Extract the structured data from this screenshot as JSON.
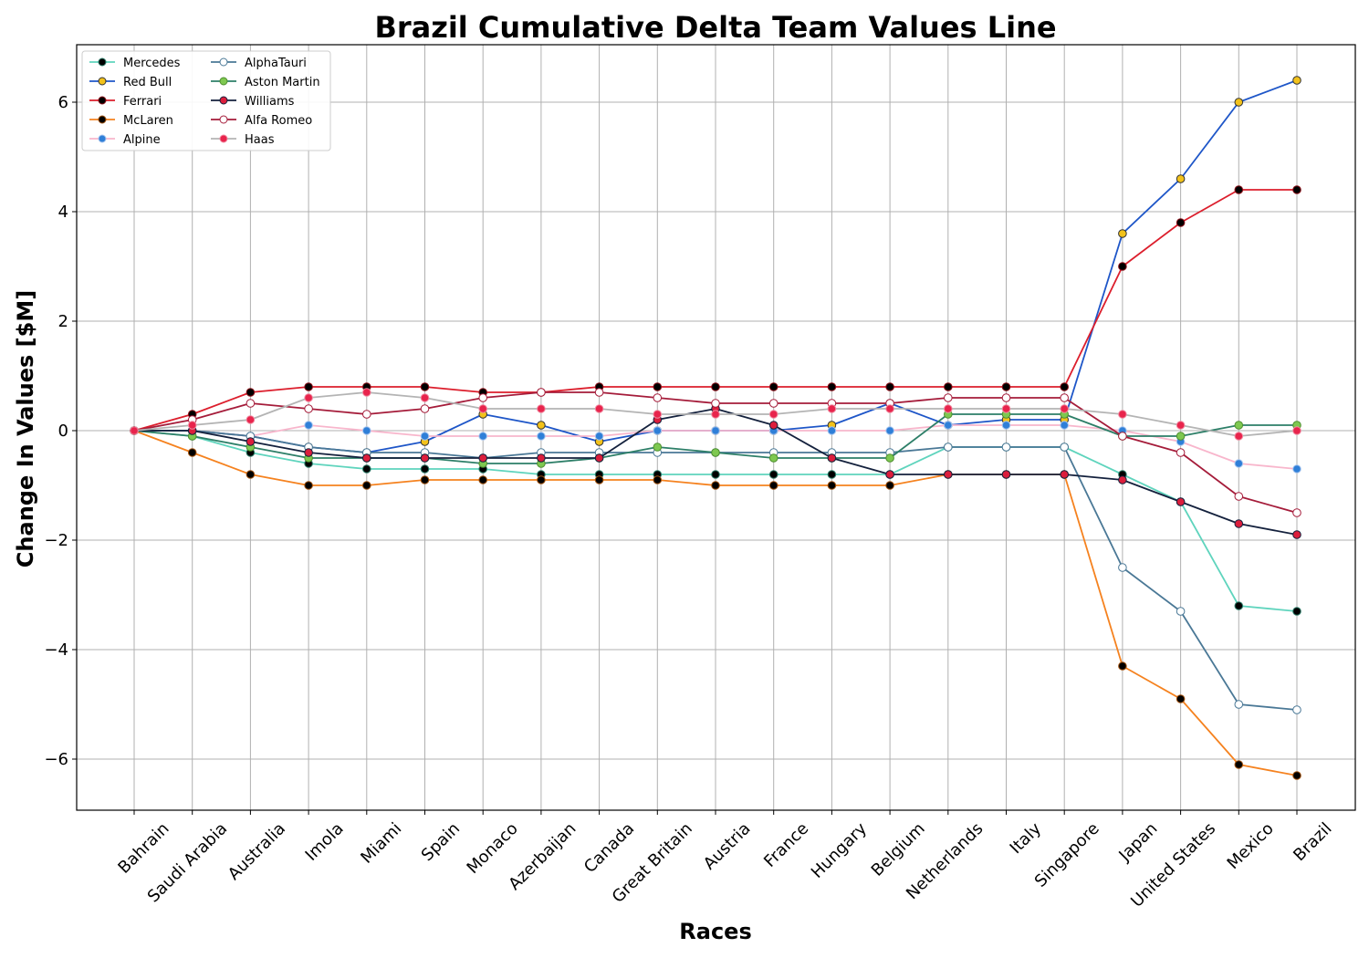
{
  "chart_data": {
    "type": "line",
    "title": "Brazil Cumulative Delta Team Values Line",
    "xlabel": "Races",
    "ylabel": "Change In Values [$M]",
    "ylim": [
      -6.9,
      7.05
    ],
    "yticks": [
      -6,
      -4,
      -2,
      0,
      2,
      4,
      6
    ],
    "ytick_labels": [
      "−6",
      "−4",
      "−2",
      "0",
      "2",
      "4",
      "6"
    ],
    "grid": true,
    "legend_position": "top-left",
    "categories": [
      "Bahrain",
      "Saudi Arabia",
      "Australia",
      "Imola",
      "Miami",
      "Spain",
      "Monaco",
      "Azerbaijan",
      "Canada",
      "Great Britain",
      "Austria",
      "France",
      "Hungary",
      "Belgium",
      "Netherlands",
      "Italy",
      "Singapore",
      "Japan",
      "United States",
      "Mexico",
      "Brazil"
    ],
    "series": [
      {
        "name": "Mercedes",
        "color": "#5fd4bd",
        "marker_fill": "#000000",
        "marker_edge": "#2e7d6a",
        "values": [
          0,
          -0.1,
          -0.4,
          -0.6,
          -0.7,
          -0.7,
          -0.7,
          -0.8,
          -0.8,
          -0.8,
          -0.8,
          -0.8,
          -0.8,
          -0.8,
          -0.3,
          -0.3,
          -0.3,
          -0.8,
          -1.3,
          -3.2,
          -3.3
        ]
      },
      {
        "name": "Red Bull",
        "color": "#1e56c8",
        "marker_fill": "#f2c21b",
        "marker_edge": "#333333",
        "values": [
          0,
          0.0,
          -0.1,
          -0.3,
          -0.4,
          -0.2,
          0.3,
          0.1,
          -0.2,
          0.0,
          0.0,
          0.0,
          0.1,
          0.5,
          0.1,
          0.2,
          0.2,
          3.6,
          4.6,
          6.0,
          6.4
        ]
      },
      {
        "name": "Ferrari",
        "color": "#dc1e2c",
        "marker_fill": "#000000",
        "marker_edge": "#8a0f18",
        "values": [
          0,
          0.3,
          0.7,
          0.8,
          0.8,
          0.8,
          0.7,
          0.7,
          0.8,
          0.8,
          0.8,
          0.8,
          0.8,
          0.8,
          0.8,
          0.8,
          0.8,
          3.0,
          3.8,
          4.4,
          4.4
        ]
      },
      {
        "name": "McLaren",
        "color": "#f5821f",
        "marker_fill": "#000000",
        "marker_edge": "#a0520f",
        "values": [
          0,
          -0.4,
          -0.8,
          -1.0,
          -1.0,
          -0.9,
          -0.9,
          -0.9,
          -0.9,
          -0.9,
          -1.0,
          -1.0,
          -1.0,
          -1.0,
          -0.8,
          -0.8,
          -0.8,
          -4.3,
          -4.9,
          -6.1,
          -6.3
        ]
      },
      {
        "name": "Alpine",
        "color": "#f8b6cc",
        "marker_fill": "#2f7fd8",
        "marker_edge": "#a7c5ee",
        "values": [
          0,
          0.0,
          -0.1,
          0.1,
          0.0,
          -0.1,
          -0.1,
          -0.1,
          -0.1,
          0.0,
          0.0,
          0.0,
          0.0,
          0.0,
          0.1,
          0.1,
          0.1,
          0.0,
          -0.2,
          -0.6,
          -0.7
        ]
      },
      {
        "name": "AlphaTauri",
        "color": "#4a7896",
        "marker_fill": "#ffffff",
        "marker_edge": "#4a7896",
        "values": [
          0,
          0.0,
          -0.1,
          -0.3,
          -0.4,
          -0.4,
          -0.5,
          -0.4,
          -0.4,
          -0.4,
          -0.4,
          -0.4,
          -0.4,
          -0.4,
          -0.3,
          -0.3,
          -0.3,
          -2.5,
          -3.3,
          -5.0,
          -5.1
        ]
      },
      {
        "name": "Aston Martin",
        "color": "#2d7f68",
        "marker_fill": "#7ec850",
        "marker_edge": "#4f8f30",
        "values": [
          0,
          -0.1,
          -0.3,
          -0.5,
          -0.5,
          -0.5,
          -0.6,
          -0.6,
          -0.5,
          -0.3,
          -0.4,
          -0.5,
          -0.5,
          -0.5,
          0.3,
          0.3,
          0.3,
          -0.1,
          -0.1,
          0.1,
          0.1
        ]
      },
      {
        "name": "Williams",
        "color": "#14213d",
        "marker_fill": "#dc1e3c",
        "marker_edge": "#14213d",
        "values": [
          0,
          0.0,
          -0.2,
          -0.4,
          -0.5,
          -0.5,
          -0.5,
          -0.5,
          -0.5,
          0.2,
          0.4,
          0.1,
          -0.5,
          -0.8,
          -0.8,
          -0.8,
          -0.8,
          -0.9,
          -1.3,
          -1.7,
          -1.9
        ]
      },
      {
        "name": "Alfa Romeo",
        "color": "#a51c3a",
        "marker_fill": "#ffffff",
        "marker_edge": "#a51c3a",
        "values": [
          0,
          0.2,
          0.5,
          0.4,
          0.3,
          0.4,
          0.6,
          0.7,
          0.7,
          0.6,
          0.5,
          0.5,
          0.5,
          0.5,
          0.6,
          0.6,
          0.6,
          -0.1,
          -0.4,
          -1.2,
          -1.5
        ]
      },
      {
        "name": "Haas",
        "color": "#b4b4b4",
        "marker_fill": "#e8244c",
        "marker_edge": "#f08aa0",
        "values": [
          0,
          0.1,
          0.2,
          0.6,
          0.7,
          0.6,
          0.4,
          0.4,
          0.4,
          0.3,
          0.3,
          0.3,
          0.4,
          0.4,
          0.4,
          0.4,
          0.4,
          0.3,
          0.1,
          -0.1,
          0.0
        ]
      }
    ]
  }
}
